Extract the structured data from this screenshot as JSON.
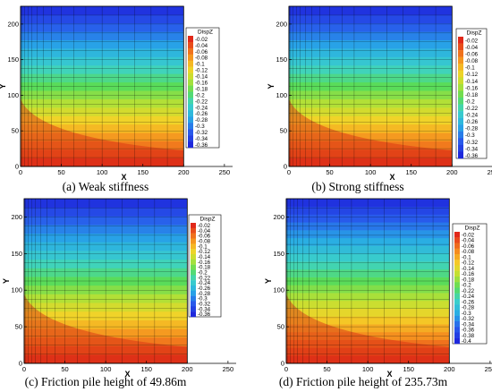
{
  "chart_data": [
    {
      "type": "heatmap",
      "caption": "(a) Weak stiffness",
      "variable": "DispZ",
      "xlabel": "X",
      "ylabel": "Y",
      "xlim": [
        0,
        260
      ],
      "ylim": [
        0,
        225
      ],
      "xticks": [
        0,
        50,
        100,
        150,
        200,
        250
      ],
      "yticks": [
        0,
        50,
        100,
        150,
        200
      ],
      "legend_levels": [
        "-0.02",
        "-0.04",
        "-0.06",
        "-0.08",
        "-0.1",
        "-0.12",
        "-0.14",
        "-0.16",
        "-0.18",
        "-0.2",
        "-0.22",
        "-0.24",
        "-0.26",
        "-0.28",
        "-0.3",
        "-0.32",
        "-0.34",
        "-0.36"
      ],
      "value_range": [
        -0.37,
        0
      ],
      "domain": {
        "x": [
          0,
          200
        ],
        "y": [
          0,
          225
        ]
      },
      "legend_placement": "right"
    },
    {
      "type": "heatmap",
      "caption": "(b) Strong stiffness",
      "variable": "DispZ",
      "xlabel": "X",
      "ylabel": "Y",
      "xlim": [
        0,
        260
      ],
      "ylim": [
        0,
        225
      ],
      "xticks": [
        0,
        50,
        100,
        150,
        200,
        250
      ],
      "yticks": [
        0,
        50,
        100,
        150,
        200
      ],
      "legend_levels": [
        "-0.02",
        "-0.04",
        "-0.06",
        "-0.08",
        "-0.1",
        "-0.12",
        "-0.14",
        "-0.16",
        "-0.18",
        "-0.2",
        "-0.22",
        "-0.24",
        "-0.26",
        "-0.28",
        "-0.3",
        "-0.32",
        "-0.34",
        "-0.36"
      ],
      "value_range": [
        -0.37,
        0
      ],
      "domain": {
        "x": [
          0,
          200
        ],
        "y": [
          0,
          225
        ]
      },
      "legend_placement": "right"
    },
    {
      "type": "heatmap",
      "caption": "(c) Friction pile height of 49.86m",
      "variable": "DispZ",
      "xlabel": "X",
      "ylabel": "Y",
      "xlim": [
        0,
        260
      ],
      "ylim": [
        0,
        225
      ],
      "xticks": [
        0,
        50,
        100,
        150,
        200,
        250
      ],
      "yticks": [
        0,
        50,
        100,
        150,
        200
      ],
      "legend_levels": [
        "-0.02",
        "-0.04",
        "-0.06",
        "-0.08",
        "-0.1",
        "-0.12",
        "-0.14",
        "-0.16",
        "-0.18",
        "-0.2",
        "-0.22",
        "-0.24",
        "-0.26",
        "-0.28",
        "-0.3",
        "-0.32",
        "-0.34",
        "-0.36"
      ],
      "value_range": [
        -0.37,
        0
      ],
      "domain": {
        "x": [
          0,
          200
        ],
        "y": [
          0,
          225
        ]
      },
      "legend_placement": "right"
    },
    {
      "type": "heatmap",
      "caption": "(d) Friction pile height of 235.73m",
      "variable": "DispZ",
      "xlabel": "X",
      "ylabel": "Y",
      "xlim": [
        0,
        260
      ],
      "ylim": [
        0,
        225
      ],
      "xticks": [
        0,
        50,
        100,
        150,
        200,
        250
      ],
      "yticks": [
        0,
        50,
        100,
        150,
        200
      ],
      "legend_levels": [
        "-0.02",
        "-0.04",
        "-0.06",
        "-0.08",
        "-0.1",
        "-0.12",
        "-0.14",
        "-0.16",
        "-0.18",
        "-0.2",
        "-0.22",
        "-0.24",
        "-0.26",
        "-0.28",
        "-0.3",
        "-0.32",
        "-0.34",
        "-0.36",
        "-0.38",
        "-0.4"
      ],
      "value_range": [
        -0.41,
        0
      ],
      "domain": {
        "x": [
          0,
          200
        ],
        "y": [
          0,
          225
        ]
      },
      "legend_placement": "right"
    }
  ]
}
